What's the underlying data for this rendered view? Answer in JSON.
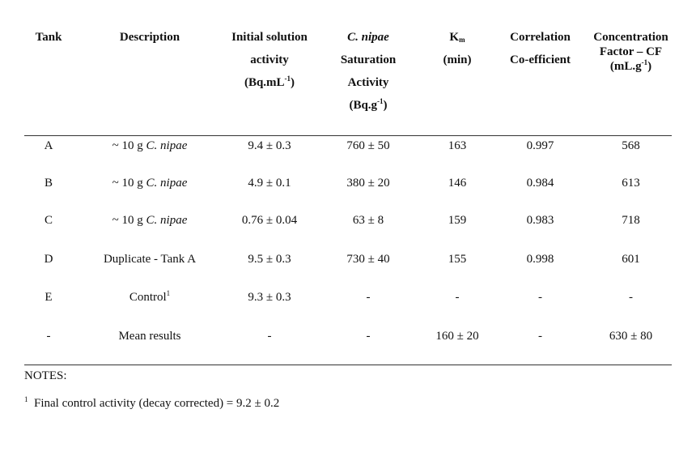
{
  "table": {
    "headers": {
      "tank": "Tank",
      "description": "Description",
      "initial_line1": "Initial solution",
      "initial_line2": "activity",
      "initial_line3_pre": "(Bq.mL",
      "initial_line3_sup": "-1",
      "initial_line3_post": ")",
      "sat_line1": "C. nipae",
      "sat_line2": "Saturation",
      "sat_line3": "Activity",
      "sat_line4_pre": "(Bq.g",
      "sat_line4_sup": "-1",
      "sat_line4_post": ")",
      "km_base": "K",
      "km_sub": "m",
      "km_unit": "(min)",
      "corr_line1": "Correlation",
      "corr_line2": "Co-efficient",
      "cf_line1": "Concentration",
      "cf_line2": "Factor – CF",
      "cf_line3_pre": "(mL.g",
      "cf_line3_sup": "-1",
      "cf_line3_post": ")"
    },
    "rows": [
      {
        "tank": "A",
        "desc_pre": "~ 10 g ",
        "desc_italic": "C. nipae",
        "desc_sup": "",
        "initial": "9.4 ± 0.3",
        "saturation": "760 ± 50",
        "km": "163",
        "correlation": "0.997",
        "cf": "568"
      },
      {
        "tank": "B",
        "desc_pre": "~ 10 g ",
        "desc_italic": "C. nipae",
        "desc_sup": "",
        "initial": "4.9 ± 0.1",
        "saturation": "380 ± 20",
        "km": "146",
        "correlation": "0.984",
        "cf": "613"
      },
      {
        "tank": "C",
        "desc_pre": "~ 10 g ",
        "desc_italic": "C. nipae",
        "desc_sup": "",
        "initial": "0.76 ± 0.04",
        "saturation": "63 ± 8",
        "km": "159",
        "correlation": "0.983",
        "cf": "718"
      },
      {
        "tank": "D",
        "desc_pre": "Duplicate - Tank A",
        "desc_italic": "",
        "desc_sup": "",
        "initial": "9.5 ± 0.3",
        "saturation": "730 ± 40",
        "km": "155",
        "correlation": "0.998",
        "cf": "601"
      },
      {
        "tank": "E",
        "desc_pre": "Control",
        "desc_italic": "",
        "desc_sup": "1",
        "initial": "9.3 ± 0.3",
        "saturation": "-",
        "km": "-",
        "correlation": "-",
        "cf": "-"
      },
      {
        "tank": "-",
        "desc_pre": "Mean results",
        "desc_italic": "",
        "desc_sup": "",
        "initial": "-",
        "saturation": "-",
        "km": "160 ± 20",
        "correlation": "-",
        "cf": "630 ± 80"
      }
    ]
  },
  "notes": {
    "label": "NOTES:",
    "footnote_marker": "1",
    "footnote_text": "Final control activity (decay corrected) = 9.2 ± 0.2"
  }
}
